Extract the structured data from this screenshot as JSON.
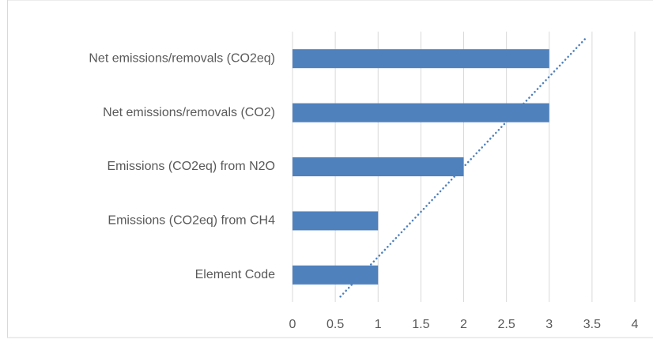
{
  "chart_data": {
    "type": "barh",
    "categories": [
      "Element Code",
      "Emissions (CO2eq) from CH4",
      "Emissions (CO2eq) from N2O",
      "Net emissions/removals (CO2)",
      "Net emissions/removals (CO2eq)"
    ],
    "values": [
      1,
      1,
      2,
      3,
      3
    ],
    "color": "#4f81bd",
    "xlim": [
      0,
      4
    ],
    "xticks": [
      0,
      0.5,
      1,
      1.5,
      2,
      2.5,
      3,
      3.5,
      4
    ],
    "grid": true,
    "trendline": "linear"
  }
}
